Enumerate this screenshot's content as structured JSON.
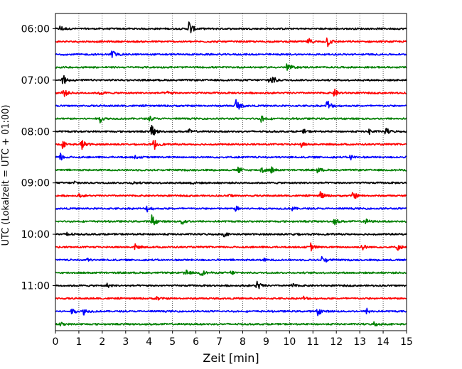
{
  "chart_data": {
    "type": "line",
    "subtype": "helicorder",
    "title": "",
    "xlabel": "Zeit  [min]",
    "ylabel": "UTC (Lokalzeit = UTC + 01:00)",
    "xlim": [
      0,
      15
    ],
    "x_ticks": [
      "0",
      "1",
      "2",
      "3",
      "4",
      "5",
      "6",
      "7",
      "8",
      "9",
      "10",
      "11",
      "12",
      "13",
      "14",
      "15"
    ],
    "y_tick_labels": [
      "06:00",
      "07:00",
      "08:00",
      "09:00",
      "10:00",
      "11:00"
    ],
    "grid": "vertical dotted lines at each minute",
    "trace_start": "06:00",
    "trace_interval_minutes": 15,
    "trace_colors": [
      "#000000",
      "#ff0000",
      "#0000ff",
      "#008000"
    ],
    "traces": [
      {
        "start": "06:00",
        "events": [
          [
            0.2,
            0.5
          ],
          [
            5.7,
            1.3
          ]
        ]
      },
      {
        "start": "06:15",
        "events": [
          [
            10.8,
            0.5
          ],
          [
            11.6,
            0.9
          ]
        ]
      },
      {
        "start": "06:30",
        "events": [
          [
            2.4,
            0.8
          ]
        ]
      },
      {
        "start": "06:45",
        "events": [
          [
            9.9,
            0.7
          ]
        ]
      },
      {
        "start": "07:00",
        "events": [
          [
            0.3,
            0.9
          ],
          [
            9.1,
            0.3
          ],
          [
            9.2,
            0.4
          ],
          [
            9.3,
            0.3
          ]
        ]
      },
      {
        "start": "07:15",
        "events": [
          [
            0.3,
            0.9
          ],
          [
            1.9,
            0.3
          ],
          [
            4.8,
            0.3
          ],
          [
            11.9,
            0.6
          ]
        ]
      },
      {
        "start": "07:30",
        "events": [
          [
            7.7,
            1.2
          ],
          [
            11.6,
            1.1
          ]
        ]
      },
      {
        "start": "07:45",
        "events": [
          [
            1.9,
            0.5
          ],
          [
            4.0,
            0.4
          ],
          [
            8.8,
            0.6
          ]
        ]
      },
      {
        "start": "08:00",
        "events": [
          [
            4.1,
            1.1
          ],
          [
            5.7,
            0.3
          ],
          [
            10.6,
            0.3
          ],
          [
            13.4,
            0.4
          ],
          [
            14.1,
            0.6
          ]
        ]
      },
      {
        "start": "08:15",
        "events": [
          [
            0.3,
            0.5
          ],
          [
            1.1,
            0.9
          ],
          [
            4.2,
            0.9
          ],
          [
            10.5,
            0.4
          ]
        ]
      },
      {
        "start": "08:30",
        "events": [
          [
            0.2,
            0.6
          ],
          [
            3.4,
            0.2
          ],
          [
            12.6,
            0.4
          ]
        ]
      },
      {
        "start": "08:45",
        "events": [
          [
            7.8,
            0.5
          ],
          [
            8.8,
            0.6
          ],
          [
            9.2,
            0.5
          ],
          [
            11.2,
            0.4
          ]
        ]
      },
      {
        "start": "09:00",
        "events": [
          [
            0.8,
            0.3
          ],
          [
            3.3,
            0.2
          ],
          [
            5.8,
            0.2
          ]
        ]
      },
      {
        "start": "09:15",
        "events": [
          [
            1.0,
            0.2
          ],
          [
            7.4,
            0.2
          ],
          [
            11.3,
            0.7
          ],
          [
            12.7,
            0.7
          ]
        ]
      },
      {
        "start": "09:30",
        "events": [
          [
            3.9,
            0.5
          ],
          [
            7.7,
            0.4
          ],
          [
            10.1,
            0.3
          ]
        ]
      },
      {
        "start": "09:45",
        "events": [
          [
            4.1,
            1.1
          ],
          [
            5.4,
            0.6
          ],
          [
            11.9,
            0.5
          ],
          [
            13.2,
            0.5
          ]
        ]
      },
      {
        "start": "10:00",
        "events": [
          [
            0.5,
            0.5
          ],
          [
            7.2,
            0.3
          ],
          [
            10.2,
            0.2
          ]
        ]
      },
      {
        "start": "10:15",
        "events": [
          [
            3.4,
            0.4
          ],
          [
            10.9,
            0.6
          ],
          [
            13.1,
            0.5
          ],
          [
            14.6,
            0.5
          ]
        ]
      },
      {
        "start": "10:30",
        "events": [
          [
            1.3,
            0.3
          ],
          [
            8.9,
            0.2
          ],
          [
            11.4,
            0.8
          ]
        ]
      },
      {
        "start": "10:45",
        "events": [
          [
            5.5,
            0.7
          ],
          [
            6.2,
            0.6
          ],
          [
            7.5,
            0.3
          ]
        ]
      },
      {
        "start": "11:00",
        "events": [
          [
            2.2,
            0.3
          ],
          [
            8.6,
            0.8
          ],
          [
            10.1,
            0.3
          ]
        ]
      },
      {
        "start": "11:15",
        "events": [
          [
            4.3,
            0.3
          ],
          [
            10.6,
            0.3
          ]
        ]
      },
      {
        "start": "11:30",
        "events": [
          [
            0.7,
            0.4
          ],
          [
            1.2,
            0.5
          ],
          [
            11.2,
            0.6
          ],
          [
            13.3,
            0.4
          ]
        ]
      },
      {
        "start": "11:45",
        "events": [
          [
            0.2,
            0.3
          ],
          [
            13.6,
            0.4
          ]
        ]
      }
    ]
  }
}
